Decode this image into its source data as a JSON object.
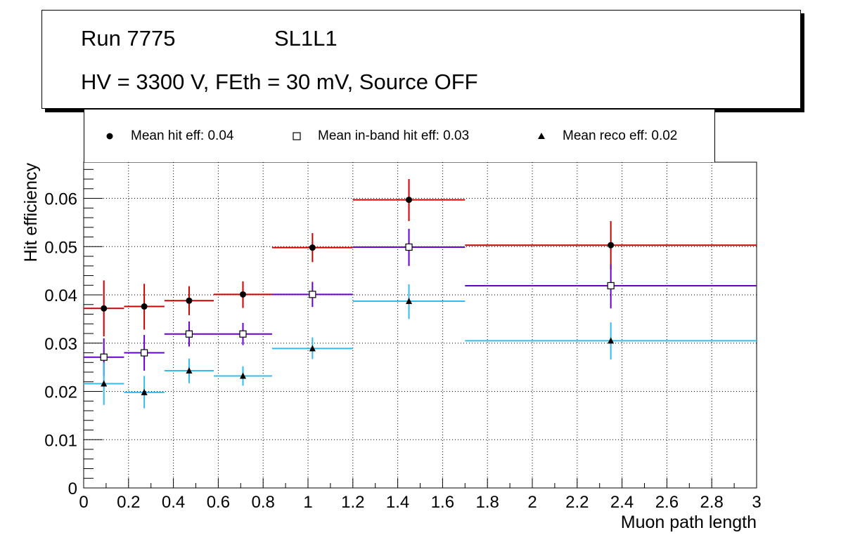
{
  "title_box": {
    "run": "Run 7775",
    "layer": "SL1L1",
    "conditions": "HV = 3300 V, FEth = 30 mV, Source OFF"
  },
  "legend": {
    "entries": [
      {
        "label": "Mean hit  eff: 0.04",
        "marker": "circle"
      },
      {
        "label": "Mean in-band hit eff: 0.03",
        "marker": "open-square"
      },
      {
        "label": "Mean reco eff: 0.02",
        "marker": "triangle"
      }
    ]
  },
  "colors": {
    "hit": "#cc0000",
    "inband": "#6600cc",
    "reco": "#33bbee",
    "grid": "#000000"
  },
  "chart_data": {
    "type": "scatter",
    "title": "",
    "xlabel": "Muon path length",
    "ylabel": "Hit efficiency",
    "xlim": [
      0,
      3
    ],
    "ylim": [
      0,
      0.0675
    ],
    "grid": true,
    "x_ticks": [
      0,
      0.2,
      0.4,
      0.6,
      0.8,
      1,
      1.2,
      1.4,
      1.6,
      1.8,
      2,
      2.2,
      2.4,
      2.6,
      2.8,
      3
    ],
    "x_tick_labels": [
      "0",
      "0.2",
      "0.4",
      "0.6",
      "0.8",
      "1",
      "1.2",
      "1.4",
      "1.6",
      "1.8",
      "2",
      "2.2",
      "2.4",
      "2.6",
      "2.8",
      "3"
    ],
    "y_ticks": [
      0,
      0.01,
      0.02,
      0.03,
      0.04,
      0.05,
      0.06
    ],
    "y_tick_labels": [
      "0",
      "0.01",
      "0.02",
      "0.03",
      "0.04",
      "0.05",
      "0.06"
    ],
    "series": [
      {
        "name": "Mean hit  eff: 0.04",
        "key": "hit",
        "marker": "circle",
        "points": [
          {
            "x": 0.09,
            "xlo": 0.0,
            "xhi": 0.18,
            "y": 0.0372,
            "ylo": 0.0314,
            "yhi": 0.043
          },
          {
            "x": 0.27,
            "xlo": 0.18,
            "xhi": 0.36,
            "y": 0.0376,
            "ylo": 0.0328,
            "yhi": 0.0423
          },
          {
            "x": 0.47,
            "xlo": 0.36,
            "xhi": 0.58,
            "y": 0.0388,
            "ylo": 0.0358,
            "yhi": 0.0418
          },
          {
            "x": 0.71,
            "xlo": 0.58,
            "xhi": 0.84,
            "y": 0.0401,
            "ylo": 0.0373,
            "yhi": 0.0428
          },
          {
            "x": 1.02,
            "xlo": 0.84,
            "xhi": 1.2,
            "y": 0.0498,
            "ylo": 0.0468,
            "yhi": 0.0528
          },
          {
            "x": 1.45,
            "xlo": 1.2,
            "xhi": 1.7,
            "y": 0.0597,
            "ylo": 0.0553,
            "yhi": 0.064
          },
          {
            "x": 2.35,
            "xlo": 1.7,
            "xhi": 3.0,
            "y": 0.0503,
            "ylo": 0.0453,
            "yhi": 0.0553
          }
        ]
      },
      {
        "name": "Mean in-band hit eff: 0.03",
        "key": "inband",
        "marker": "open-square",
        "points": [
          {
            "x": 0.09,
            "xlo": 0.0,
            "xhi": 0.18,
            "y": 0.0271,
            "ylo": 0.0232,
            "yhi": 0.031
          },
          {
            "x": 0.27,
            "xlo": 0.18,
            "xhi": 0.36,
            "y": 0.028,
            "ylo": 0.0243,
            "yhi": 0.0317
          },
          {
            "x": 0.47,
            "xlo": 0.36,
            "xhi": 0.58,
            "y": 0.0319,
            "ylo": 0.0293,
            "yhi": 0.0345
          },
          {
            "x": 0.71,
            "xlo": 0.58,
            "xhi": 0.84,
            "y": 0.0319,
            "ylo": 0.0296,
            "yhi": 0.0342
          },
          {
            "x": 1.02,
            "xlo": 0.84,
            "xhi": 1.2,
            "y": 0.0401,
            "ylo": 0.0375,
            "yhi": 0.0427
          },
          {
            "x": 1.45,
            "xlo": 1.2,
            "xhi": 1.7,
            "y": 0.0499,
            "ylo": 0.046,
            "yhi": 0.0537
          },
          {
            "x": 2.35,
            "xlo": 1.7,
            "xhi": 3.0,
            "y": 0.0419,
            "ylo": 0.0372,
            "yhi": 0.0463
          }
        ]
      },
      {
        "name": "Mean reco eff: 0.02",
        "key": "reco",
        "marker": "triangle",
        "points": [
          {
            "x": 0.09,
            "xlo": 0.0,
            "xhi": 0.18,
            "y": 0.0216,
            "ylo": 0.0172,
            "yhi": 0.026
          },
          {
            "x": 0.27,
            "xlo": 0.18,
            "xhi": 0.36,
            "y": 0.0198,
            "ylo": 0.0165,
            "yhi": 0.0232
          },
          {
            "x": 0.47,
            "xlo": 0.36,
            "xhi": 0.58,
            "y": 0.0243,
            "ylo": 0.0217,
            "yhi": 0.0268
          },
          {
            "x": 0.71,
            "xlo": 0.58,
            "xhi": 0.84,
            "y": 0.0232,
            "ylo": 0.0212,
            "yhi": 0.0252
          },
          {
            "x": 1.02,
            "xlo": 0.84,
            "xhi": 1.2,
            "y": 0.0289,
            "ylo": 0.0267,
            "yhi": 0.0312
          },
          {
            "x": 1.45,
            "xlo": 1.2,
            "xhi": 1.7,
            "y": 0.0387,
            "ylo": 0.035,
            "yhi": 0.0422
          },
          {
            "x": 2.35,
            "xlo": 1.7,
            "xhi": 3.0,
            "y": 0.0305,
            "ylo": 0.0266,
            "yhi": 0.0343
          }
        ]
      }
    ]
  }
}
